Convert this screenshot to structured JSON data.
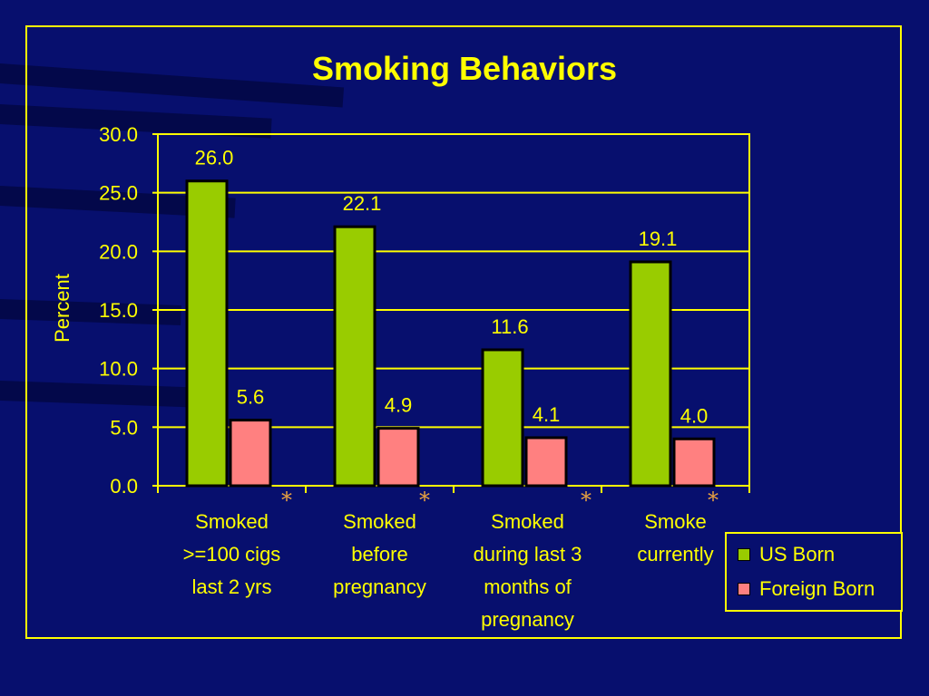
{
  "colors": {
    "background": "#070f6e",
    "accent": "#ffff00",
    "us_born": "#99cc00",
    "foreign_born": "#ff8080",
    "asterisk": "#e8a040"
  },
  "chart_data": {
    "type": "bar",
    "title": "Smoking Behaviors",
    "ylabel": "Percent",
    "xlabel": "",
    "ylim": [
      0,
      30
    ],
    "yticks": [
      "0.0",
      "5.0",
      "10.0",
      "15.0",
      "20.0",
      "25.0",
      "30.0"
    ],
    "grid": true,
    "legend_position": "bottom-right",
    "categories": [
      [
        "Smoked",
        ">=100 cigs",
        "last 2 yrs"
      ],
      [
        "Smoked",
        "before",
        "pregnancy"
      ],
      [
        "Smoked",
        "during last 3",
        "months of",
        "pregnancy"
      ],
      [
        "Smoke",
        "currently"
      ]
    ],
    "significance_marks": [
      "*",
      "*",
      "*",
      "*"
    ],
    "series": [
      {
        "name": "US Born",
        "values": [
          26.0,
          22.1,
          11.6,
          19.1
        ],
        "labels": [
          "26.0",
          "22.1",
          "11.6",
          "19.1"
        ]
      },
      {
        "name": "Foreign Born",
        "values": [
          5.6,
          4.9,
          4.1,
          4.0
        ],
        "labels": [
          "5.6",
          "4.9",
          "4.1",
          "4.0"
        ]
      }
    ]
  }
}
